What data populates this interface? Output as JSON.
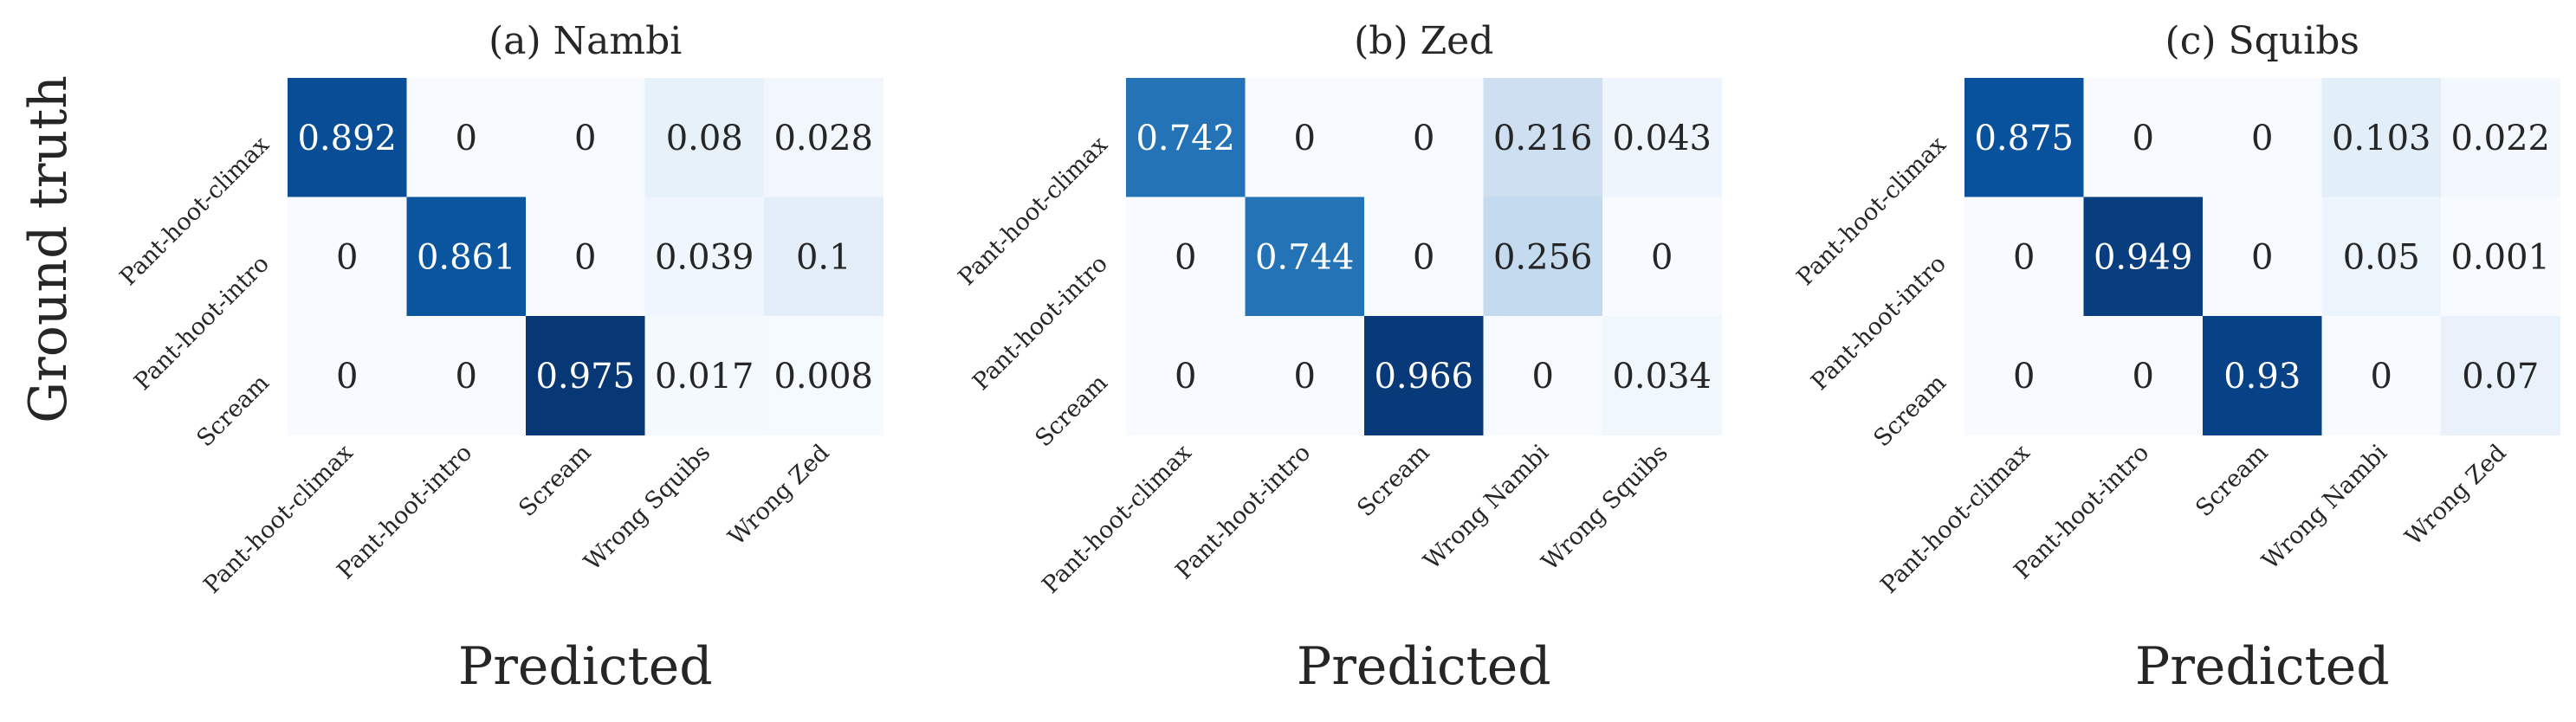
{
  "figure": {
    "ylabel": "Ground truth",
    "xlabel": "Predicted"
  },
  "chart_data": [
    {
      "type": "heatmap",
      "title": "(a) Nambi",
      "xlabel": "Predicted",
      "ylabel": "Ground truth",
      "rows": [
        "Pant-hoot-climax",
        "Pant-hoot-intro",
        "Scream"
      ],
      "columns": [
        "Pant-hoot-climax",
        "Pant-hoot-intro",
        "Scream",
        "Wrong Squibs",
        "Wrong Zed"
      ],
      "values": [
        [
          0.892,
          0,
          0,
          0.08,
          0.028
        ],
        [
          0,
          0.861,
          0,
          0.039,
          0.1
        ],
        [
          0,
          0,
          0.975,
          0.017,
          0.008
        ]
      ],
      "colorscale": "Blues",
      "vmin": 0,
      "vmax": 1,
      "colorbar": false
    },
    {
      "type": "heatmap",
      "title": "(b) Zed",
      "xlabel": "Predicted",
      "ylabel": "",
      "rows": [
        "Pant-hoot-climax",
        "Pant-hoot-intro",
        "Scream"
      ],
      "columns": [
        "Pant-hoot-climax",
        "Pant-hoot-intro",
        "Scream",
        "Wrong Nambi",
        "Wrong Squibs"
      ],
      "values": [
        [
          0.742,
          0,
          0,
          0.216,
          0.043
        ],
        [
          0,
          0.744,
          0,
          0.256,
          0
        ],
        [
          0,
          0,
          0.966,
          0,
          0.034
        ]
      ],
      "colorscale": "Blues",
      "vmin": 0,
      "vmax": 1,
      "colorbar": false
    },
    {
      "type": "heatmap",
      "title": "(c) Squibs",
      "xlabel": "Predicted",
      "ylabel": "",
      "rows": [
        "Pant-hoot-climax",
        "Pant-hoot-intro",
        "Scream"
      ],
      "columns": [
        "Pant-hoot-climax",
        "Pant-hoot-intro",
        "Scream",
        "Wrong Nambi",
        "Wrong Zed"
      ],
      "values": [
        [
          0.875,
          0,
          0,
          0.103,
          0.022
        ],
        [
          0,
          0.949,
          0,
          0.05,
          0.001
        ],
        [
          0,
          0,
          0.93,
          0,
          0.07
        ]
      ],
      "colorscale": "Blues",
      "vmin": 0,
      "vmax": 1,
      "colorbar": false
    }
  ]
}
